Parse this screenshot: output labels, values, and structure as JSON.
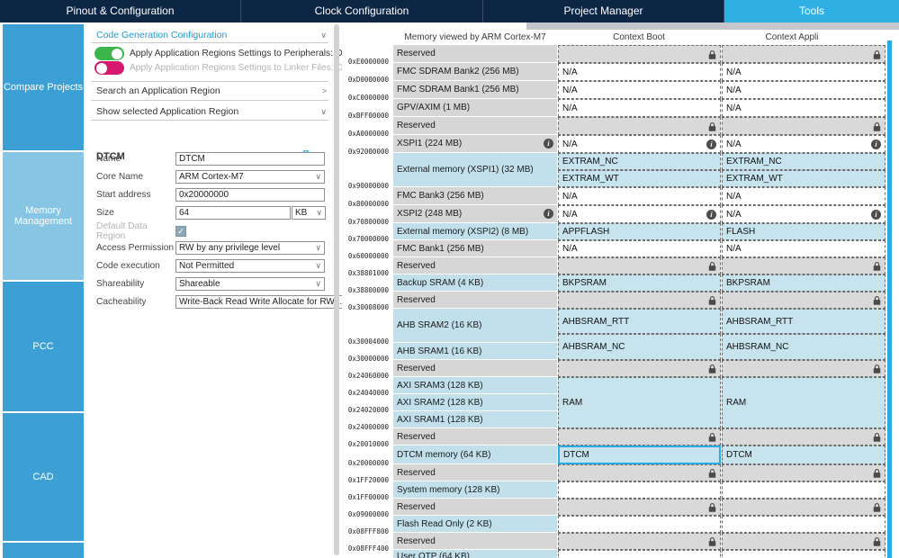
{
  "tabs": [
    {
      "label": "Pinout & Configuration",
      "active": false
    },
    {
      "label": "Clock Configuration",
      "active": false
    },
    {
      "label": "Project Manager",
      "active": false
    },
    {
      "label": "Tools",
      "active": true
    }
  ],
  "sidebar": {
    "items": [
      {
        "label": "Compare Projects",
        "selected": false
      },
      {
        "label": "Memory Management",
        "selected": true
      },
      {
        "label": "PCC",
        "selected": false
      },
      {
        "label": "CAD",
        "selected": false
      }
    ]
  },
  "config_panel": {
    "code_generation_section": {
      "label": "Code Generation Configuration"
    },
    "toggles": [
      {
        "label": "Apply Application Regions Settings to Peripherals: ON",
        "state": "on"
      },
      {
        "label": "Apply Application Regions Settings to Linker Files: OFF",
        "state": "off"
      }
    ],
    "search_section": {
      "label": "Search an Application Region"
    },
    "show_section": {
      "label": "Show selected Application Region"
    },
    "region_editor": {
      "title": "DTCM",
      "fields": [
        {
          "label": "Name",
          "control": "input",
          "value": "DTCM"
        },
        {
          "label": "Core Name",
          "control": "select",
          "value": "ARM Cortex-M7"
        },
        {
          "label": "Start address",
          "control": "input",
          "value": "0x20000000"
        },
        {
          "label": "Size",
          "control": "input-unit",
          "value": "64",
          "unit": "KB"
        },
        {
          "label": "Default Data Region",
          "control": "checkbox",
          "checked": true,
          "disabled": true
        },
        {
          "label": "Access Permission",
          "control": "select",
          "value": "RW by any privilege level"
        },
        {
          "label": "Code execution",
          "control": "select",
          "value": "Not Permitted"
        },
        {
          "label": "Shareability",
          "control": "select",
          "value": "Shareable"
        },
        {
          "label": "Cacheability",
          "control": "select",
          "value": "Write-Back Read Write Allocate for RW ..."
        }
      ]
    }
  },
  "memory_table": {
    "col_headers": [
      "Memory viewed by ARM Cortex-M7",
      "Context Boot",
      "Context Appli"
    ],
    "memory_column": [
      {
        "addr": "0xE0000000",
        "label": "Reserved",
        "kind": "gray",
        "h": 20
      },
      {
        "addr": "0xD0000000",
        "label": "FMC SDRAM Bank2 (256 MB)",
        "kind": "gray",
        "h": 20
      },
      {
        "addr": "0xC0000000",
        "label": "FMC SDRAM Bank1 (256 MB)",
        "kind": "gray",
        "h": 20
      },
      {
        "addr": "0xBFF00000",
        "label": "GPV/AXIM (1 MB)",
        "kind": "gray",
        "h": 20
      },
      {
        "addr": "0xA0000000",
        "label": "Reserved",
        "kind": "gray",
        "h": 20
      },
      {
        "addr": "0x92000000",
        "label": "XSPI1 (224 MB)",
        "kind": "gray",
        "h": 20,
        "info": true
      },
      {
        "addr": "0x90000000",
        "label": "External memory (XSPI1) (32 MB)",
        "kind": "blue",
        "h": 38
      },
      {
        "addr": "0x80000000",
        "label": "FMC Bank3 (256 MB)",
        "kind": "gray",
        "h": 20
      },
      {
        "addr": "0x70800000",
        "label": "XSPI2 (248 MB)",
        "kind": "gray",
        "h": 20,
        "info": true
      },
      {
        "addr": "0x70000000",
        "label": "External memory (XSPI2) (8 MB)",
        "kind": "blue",
        "h": 19
      },
      {
        "addr": "0x60000000",
        "label": "FMC Bank1 (256 MB)",
        "kind": "gray",
        "h": 19
      },
      {
        "addr": "0x38801000",
        "label": "Reserved",
        "kind": "gray",
        "h": 19
      },
      {
        "addr": "0x38800000",
        "label": "Backup SRAM (4 KB)",
        "kind": "blue",
        "h": 19
      },
      {
        "addr": "0x30008000",
        "label": "Reserved",
        "kind": "gray",
        "h": 19
      },
      {
        "addr": "0x30004000",
        "label": "AHB SRAM2 (16 KB)",
        "kind": "blue",
        "h": 38
      },
      {
        "addr": "0x30000000",
        "label": "AHB SRAM1 (16 KB)",
        "kind": "blue",
        "h": 19
      },
      {
        "addr": "0x24060000",
        "label": "Reserved",
        "kind": "gray",
        "h": 19
      },
      {
        "addr": "0x24040000",
        "label": "AXI SRAM3 (128 KB)",
        "kind": "blue",
        "h": 19
      },
      {
        "addr": "0x24020000",
        "label": "AXI SRAM2 (128 KB)",
        "kind": "blue",
        "h": 19
      },
      {
        "addr": "0x24000000",
        "label": "AXI SRAM1 (128 KB)",
        "kind": "blue",
        "h": 19
      },
      {
        "addr": "0x20010000",
        "label": "Reserved",
        "kind": "gray",
        "h": 19
      },
      {
        "addr": "0x20000000",
        "label": "DTCM memory (64 KB)",
        "kind": "blue",
        "h": 21
      },
      {
        "addr": "0x1FF20000",
        "label": "Reserved",
        "kind": "gray",
        "h": 19
      },
      {
        "addr": "0x1FF00000",
        "label": "System memory (128 KB)",
        "kind": "blue",
        "h": 19
      },
      {
        "addr": "0x09000000",
        "label": "Reserved",
        "kind": "gray",
        "h": 19
      },
      {
        "addr": "0x08FFF800",
        "label": "Flash Read Only (2 KB)",
        "kind": "blue",
        "h": 19
      },
      {
        "addr": "0x08FFF400",
        "label": "Reserved",
        "kind": "gray",
        "h": 19
      },
      {
        "addr": "",
        "label": "User OTP (64 KB)",
        "kind": "blue",
        "h": 16
      }
    ],
    "boot_column": [
      {
        "label": "",
        "kind": "lock",
        "h": 20
      },
      {
        "label": "N/A",
        "kind": "na",
        "h": 20
      },
      {
        "label": "N/A",
        "kind": "na",
        "h": 20
      },
      {
        "label": "N/A",
        "kind": "na",
        "h": 20
      },
      {
        "label": "",
        "kind": "lock",
        "h": 20
      },
      {
        "label": "N/A",
        "kind": "na",
        "h": 20,
        "info": true
      },
      {
        "label": "EXTRAM_NC",
        "kind": "blue",
        "h": 19
      },
      {
        "label": "EXTRAM_WT",
        "kind": "blue",
        "h": 19
      },
      {
        "label": "N/A",
        "kind": "na",
        "h": 20
      },
      {
        "label": "N/A",
        "kind": "na",
        "h": 20,
        "info": true
      },
      {
        "label": "APPFLASH",
        "kind": "blue",
        "h": 19
      },
      {
        "label": "N/A",
        "kind": "na",
        "h": 19
      },
      {
        "label": "",
        "kind": "lock",
        "h": 19
      },
      {
        "label": "BKPSRAM",
        "kind": "blue",
        "h": 19
      },
      {
        "label": "",
        "kind": "lock",
        "h": 19
      },
      {
        "label": "AHBSRAM_RTT",
        "kind": "blue",
        "h": 28
      },
      {
        "label": "AHBSRAM_NC",
        "kind": "blue",
        "h": 29
      },
      {
        "label": "",
        "kind": "lock",
        "h": 19
      },
      {
        "label": "RAM",
        "kind": "blue",
        "h": 57
      },
      {
        "label": "",
        "kind": "lock",
        "h": 19
      },
      {
        "label": "DTCM",
        "kind": "blue",
        "h": 21,
        "selected": true
      },
      {
        "label": "",
        "kind": "lock",
        "h": 19
      },
      {
        "label": "",
        "kind": "empty",
        "h": 19
      },
      {
        "label": "",
        "kind": "lock",
        "h": 19
      },
      {
        "label": "",
        "kind": "empty",
        "h": 19
      },
      {
        "label": "",
        "kind": "lock",
        "h": 19
      },
      {
        "label": "",
        "kind": "empty",
        "h": 16
      }
    ],
    "appli_column": [
      {
        "label": "",
        "kind": "lock",
        "h": 20
      },
      {
        "label": "N/A",
        "kind": "na",
        "h": 20
      },
      {
        "label": "N/A",
        "kind": "na",
        "h": 20
      },
      {
        "label": "N/A",
        "kind": "na",
        "h": 20
      },
      {
        "label": "",
        "kind": "lock",
        "h": 20
      },
      {
        "label": "N/A",
        "kind": "na",
        "h": 20,
        "info": true
      },
      {
        "label": "EXTRAM_NC",
        "kind": "blue",
        "h": 19
      },
      {
        "label": "EXTRAM_WT",
        "kind": "blue",
        "h": 19
      },
      {
        "label": "N/A",
        "kind": "na",
        "h": 20
      },
      {
        "label": "N/A",
        "kind": "na",
        "h": 20,
        "info": true
      },
      {
        "label": "FLASH",
        "kind": "blue",
        "h": 19
      },
      {
        "label": "N/A",
        "kind": "na",
        "h": 19
      },
      {
        "label": "",
        "kind": "lock",
        "h": 19
      },
      {
        "label": "BKPSRAM",
        "kind": "blue",
        "h": 19
      },
      {
        "label": "",
        "kind": "lock",
        "h": 19
      },
      {
        "label": "AHBSRAM_RTT",
        "kind": "blue",
        "h": 28
      },
      {
        "label": "AHBSRAM_NC",
        "kind": "blue",
        "h": 29
      },
      {
        "label": "",
        "kind": "lock",
        "h": 19
      },
      {
        "label": "RAM",
        "kind": "blue",
        "h": 57
      },
      {
        "label": "",
        "kind": "lock",
        "h": 19
      },
      {
        "label": "DTCM",
        "kind": "blue",
        "h": 21
      },
      {
        "label": "",
        "kind": "lock",
        "h": 19
      },
      {
        "label": "",
        "kind": "empty",
        "h": 19
      },
      {
        "label": "",
        "kind": "lock",
        "h": 19
      },
      {
        "label": "",
        "kind": "empty",
        "h": 19
      },
      {
        "label": "",
        "kind": "lock",
        "h": 19
      },
      {
        "label": "",
        "kind": "empty",
        "h": 16
      }
    ]
  },
  "icons": {
    "chevron_down": "∨",
    "chevron_right": ">",
    "check": "✓",
    "info": "i"
  },
  "colors": {
    "accent": "#29abe2",
    "tab_bar": "#0d2646",
    "active_tab": "#2fb0e4",
    "sidebar_item": "#3da0d5",
    "sidebar_selected": "#86c5e4",
    "toggle_on": "#3cb54b",
    "toggle_off": "#d6186e",
    "cell_blue": "#c7e3ee",
    "cell_gray": "#d9d9d9"
  }
}
